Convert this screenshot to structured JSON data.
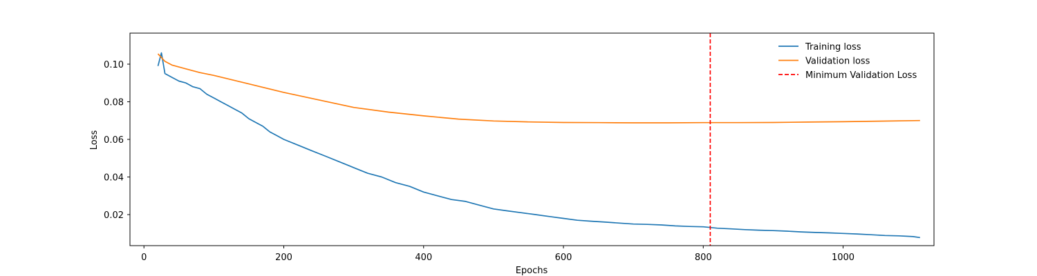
{
  "chart_data": {
    "type": "line",
    "title": "",
    "xlabel": "Epochs",
    "ylabel": "Loss",
    "xlim": [
      -20,
      1130
    ],
    "ylim": [
      0.0035,
      0.1165
    ],
    "xticks": [
      0,
      200,
      400,
      600,
      800,
      1000
    ],
    "xtick_labels": [
      "0",
      "200",
      "400",
      "600",
      "800",
      "1000"
    ],
    "yticks": [
      0.02,
      0.04,
      0.06,
      0.08,
      0.1
    ],
    "ytick_labels": [
      "0.02",
      "0.04",
      "0.06",
      "0.08",
      "0.10"
    ],
    "grid": false,
    "legend_position": "top-right",
    "series": [
      {
        "name": "Training loss",
        "color": "#1f77b4",
        "style": "solid",
        "x": [
          20,
          25,
          30,
          40,
          50,
          60,
          70,
          80,
          90,
          100,
          110,
          120,
          130,
          140,
          150,
          160,
          170,
          180,
          190,
          200,
          220,
          240,
          260,
          280,
          300,
          320,
          340,
          360,
          380,
          400,
          420,
          440,
          460,
          480,
          500,
          520,
          540,
          560,
          580,
          600,
          620,
          640,
          660,
          680,
          700,
          720,
          740,
          760,
          780,
          800,
          820,
          840,
          860,
          880,
          900,
          920,
          940,
          960,
          980,
          1000,
          1020,
          1040,
          1060,
          1080,
          1100,
          1110
        ],
        "y": [
          0.099,
          0.106,
          0.095,
          0.093,
          0.091,
          0.09,
          0.088,
          0.087,
          0.084,
          0.082,
          0.08,
          0.078,
          0.076,
          0.074,
          0.071,
          0.069,
          0.067,
          0.064,
          0.062,
          0.06,
          0.057,
          0.054,
          0.051,
          0.048,
          0.045,
          0.042,
          0.04,
          0.037,
          0.035,
          0.032,
          0.03,
          0.028,
          0.027,
          0.025,
          0.023,
          0.022,
          0.021,
          0.02,
          0.019,
          0.018,
          0.017,
          0.0165,
          0.016,
          0.0155,
          0.015,
          0.0148,
          0.0145,
          0.014,
          0.0137,
          0.0135,
          0.0128,
          0.0124,
          0.012,
          0.0117,
          0.0115,
          0.0112,
          0.0108,
          0.0105,
          0.0103,
          0.01,
          0.0097,
          0.0093,
          0.0089,
          0.0087,
          0.0083,
          0.0078
        ]
      },
      {
        "name": "Validation loss",
        "color": "#ff7f0e",
        "style": "solid",
        "x": [
          20,
          30,
          40,
          60,
          80,
          100,
          150,
          200,
          250,
          300,
          350,
          400,
          450,
          500,
          550,
          600,
          650,
          700,
          750,
          800,
          850,
          900,
          950,
          1000,
          1050,
          1110
        ],
        "y": [
          0.1055,
          0.1015,
          0.0995,
          0.0975,
          0.0955,
          0.094,
          0.0895,
          0.085,
          0.081,
          0.077,
          0.0745,
          0.0725,
          0.0708,
          0.0698,
          0.0693,
          0.069,
          0.0689,
          0.0688,
          0.0688,
          0.0689,
          0.0689,
          0.069,
          0.0692,
          0.0694,
          0.0697,
          0.07
        ]
      }
    ],
    "vlines": [
      {
        "name": "Minimum Validation Loss",
        "x": 810,
        "color": "#ff0000",
        "style": "dashed"
      }
    ]
  }
}
